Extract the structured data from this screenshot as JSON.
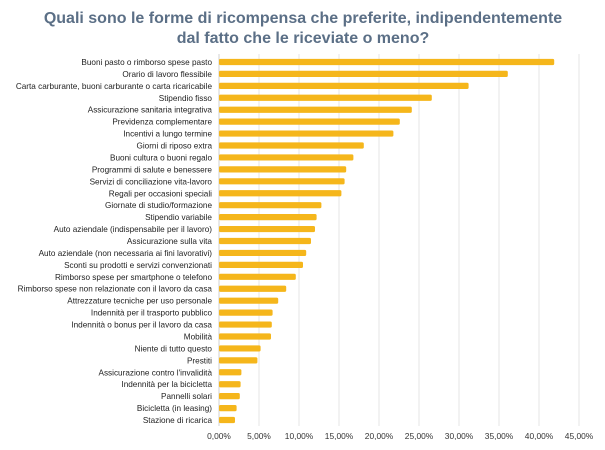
{
  "chart_data": {
    "type": "bar",
    "orientation": "horizontal",
    "title_lines": [
      "Quali sono le forme di ricompensa che preferite, indipendentemente",
      "dal fatto che le riceviate o meno?"
    ],
    "categories": [
      "Buoni pasto o rimborso spese pasto",
      "Orario di lavoro flessibile",
      "Carta carburante, buoni carburante o carta ricaricabile",
      "Stipendio fisso",
      "Assicurazione sanitaria integrativa",
      "Previdenza complementare",
      "Incentivi a lungo termine",
      "Giorni di riposo extra",
      "Buoni cultura o buoni regalo",
      "Programmi di salute e benessere",
      "Servizi di conciliazione vita-lavoro",
      "Regali per occasioni speciali",
      "Giornate di studio/formazione",
      "Stipendio variabile",
      "Auto aziendale (indispensabile per il lavoro)",
      "Assicurazione sulla vita",
      "Auto aziendale (non necessaria ai fini lavorativi)",
      "Sconti su prodotti e servizi convenzionati",
      "Rimborso spese per smartphone o telefono",
      "Rimborso spese non relazionate con il lavoro da casa",
      "Attrezzature tecniche per uso personale",
      "Indennità per il trasporto pubblico",
      "Indennità o bonus per il lavoro da casa",
      "Mobilità",
      "Niente di tutto questo",
      "Prestiti",
      "Assicurazione contro l'invalidità",
      "Indennità per la bicicletta",
      "Pannelli solari",
      "Bicicletta (in leasing)",
      "Stazione di ricarica"
    ],
    "values": [
      41.9,
      36.1,
      31.2,
      26.6,
      24.1,
      22.6,
      21.8,
      18.1,
      16.8,
      15.9,
      15.7,
      15.3,
      12.8,
      12.2,
      12.0,
      11.5,
      10.9,
      10.5,
      9.6,
      8.4,
      7.4,
      6.7,
      6.6,
      6.5,
      5.2,
      4.8,
      2.8,
      2.7,
      2.6,
      2.2,
      2.0
    ],
    "xlim": [
      0,
      45
    ],
    "x_ticks": [
      "0,00%",
      "5,00%",
      "10,00%",
      "15,00%",
      "20,00%",
      "25,00%",
      "30,00%",
      "35,00%",
      "40,00%",
      "45,00%"
    ],
    "bar_color": "#f5b61b",
    "title_color": "#5b6f86",
    "grid": true,
    "legend": false
  }
}
